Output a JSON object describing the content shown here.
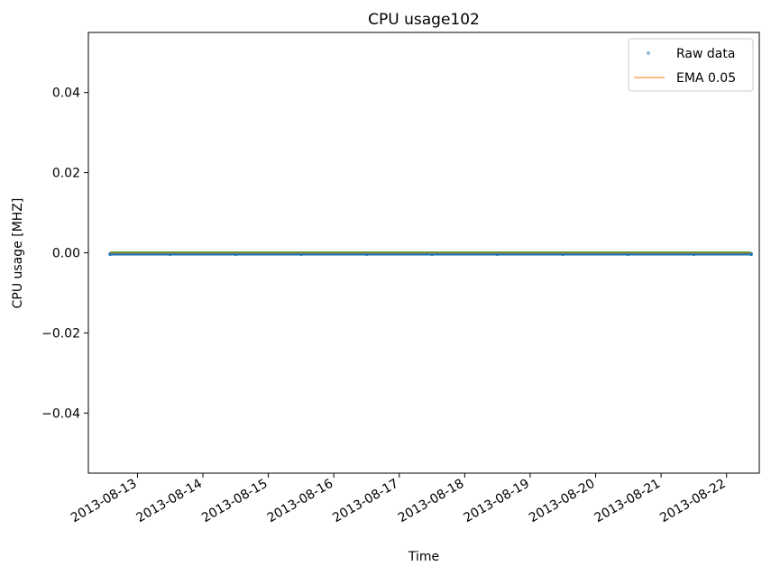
{
  "chart_data": {
    "type": "line",
    "title": "CPU usage102",
    "xlabel": "Time",
    "ylabel": "CPU usage [MHZ]",
    "x_range": [
      "2013-08-12T06:00",
      "2013-08-22T12:00"
    ],
    "ylim": [
      -0.055,
      0.055
    ],
    "x_ticks": [
      "2013-08-13",
      "2013-08-14",
      "2013-08-15",
      "2013-08-16",
      "2013-08-17",
      "2013-08-18",
      "2013-08-19",
      "2013-08-20",
      "2013-08-21",
      "2013-08-22"
    ],
    "y_ticks": [
      0.04,
      0.02,
      0.0,
      -0.02,
      -0.04
    ],
    "y_tick_labels": [
      "0.04",
      "0.02",
      "0.00",
      "−0.02",
      "−0.04"
    ],
    "grid": false,
    "legend_position": "top-right",
    "series": [
      {
        "name": "Raw data",
        "style": "markers",
        "color": "#1f77b4",
        "x": [
          "2013-08-12T14:00",
          "2013-08-13T12:00",
          "2013-08-14T12:00",
          "2013-08-15T12:00",
          "2013-08-16T12:00",
          "2013-08-17T12:00",
          "2013-08-18T12:00",
          "2013-08-19T12:00",
          "2013-08-20T12:00",
          "2013-08-21T12:00",
          "2013-08-22T09:00"
        ],
        "values": [
          0,
          0,
          0,
          0,
          0,
          0,
          0,
          0,
          0,
          0,
          0
        ]
      },
      {
        "name": "EMA 0.05",
        "style": "line",
        "color": "#ff7f0e",
        "x": [
          "2013-08-12T14:00",
          "2013-08-22T09:00"
        ],
        "values": [
          0,
          0
        ]
      },
      {
        "style": "line",
        "color": "#2ca02c",
        "x": [
          "2013-08-12T14:00",
          "2013-08-22T09:00"
        ],
        "values": [
          0,
          0
        ]
      }
    ]
  }
}
